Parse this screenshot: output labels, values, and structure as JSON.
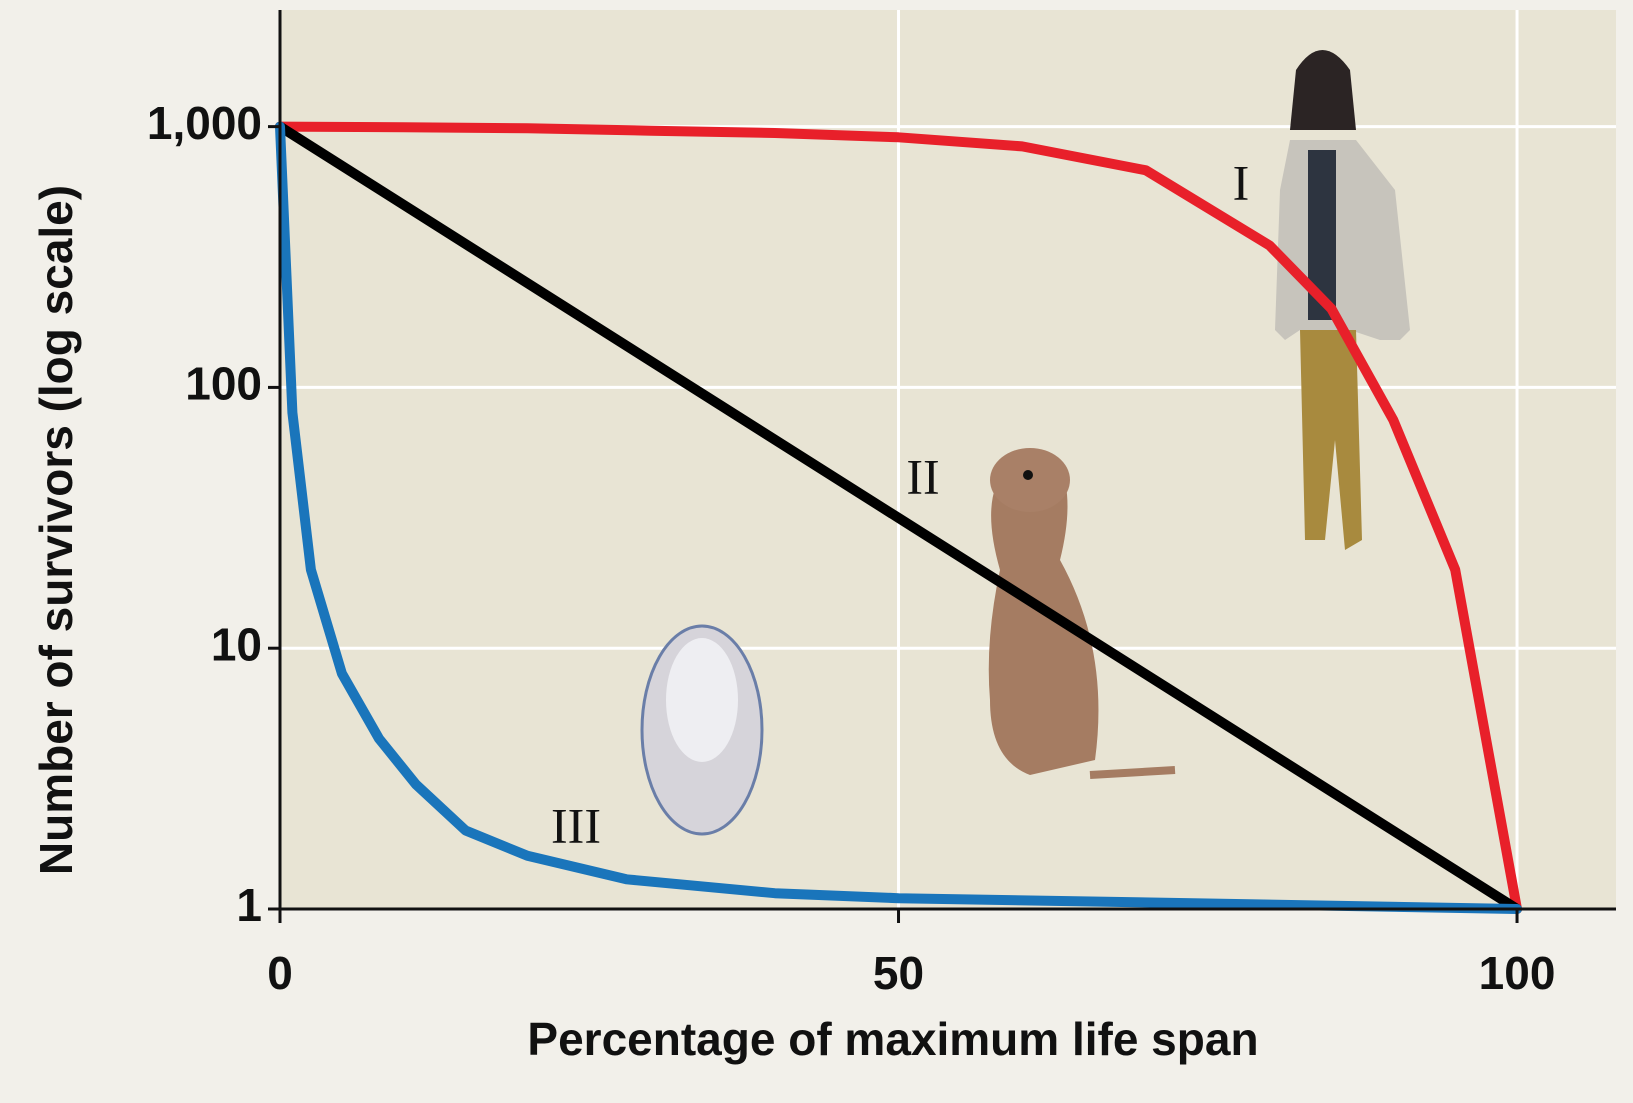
{
  "chart_data": {
    "type": "line",
    "x_label": "Percentage of maximum life span",
    "y_label": "Number of survivors (log scale)",
    "yscale": "log",
    "grid": true,
    "xlim": [
      0,
      108
    ],
    "ylim": [
      1,
      2800
    ],
    "xticks": [
      0,
      50,
      100
    ],
    "yticks": [
      1,
      10,
      100,
      {
        "value": 1000,
        "label": "1,000"
      }
    ],
    "series": [
      {
        "name": "I",
        "color": "#e8202a",
        "x": [
          0,
          10,
          20,
          30,
          40,
          50,
          60,
          70,
          80,
          85,
          90,
          95,
          100
        ],
        "values": [
          1000,
          995,
          985,
          965,
          945,
          910,
          840,
          680,
          350,
          200,
          75,
          20,
          1
        ]
      },
      {
        "name": "II",
        "color": "#000000",
        "x": [
          0,
          50,
          100
        ],
        "values": [
          1000,
          31.6,
          1
        ]
      },
      {
        "name": "III",
        "color": "#1a75bb",
        "x": [
          0,
          1,
          2.5,
          5,
          8,
          11,
          15,
          20,
          28,
          40,
          50,
          75,
          100
        ],
        "values": [
          1000,
          80,
          20,
          8,
          4.5,
          3,
          2,
          1.6,
          1.3,
          1.15,
          1.1,
          1.05,
          1
        ]
      }
    ]
  }
}
